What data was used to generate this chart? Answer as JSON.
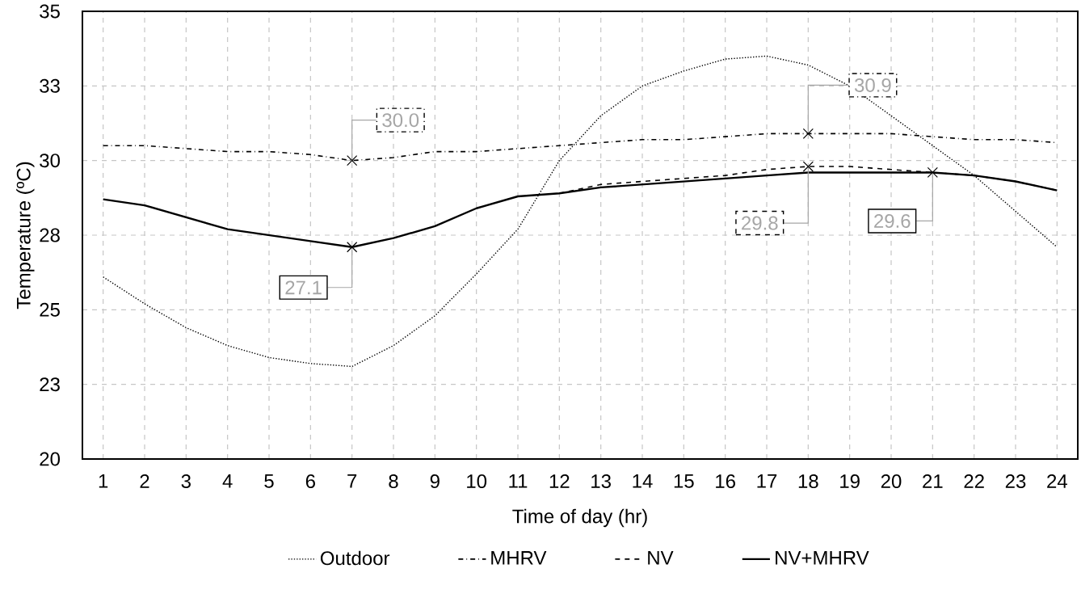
{
  "chart_data": {
    "type": "line",
    "xlabel": "Time of day (hr)",
    "ylabel": "Temperature (ºC)",
    "x": [
      1,
      2,
      3,
      4,
      5,
      6,
      7,
      8,
      9,
      10,
      11,
      12,
      13,
      14,
      15,
      16,
      17,
      18,
      19,
      20,
      21,
      22,
      23,
      24
    ],
    "xlim": [
      0.5,
      24.5
    ],
    "xticks": [
      1,
      2,
      3,
      4,
      5,
      6,
      7,
      8,
      9,
      10,
      11,
      12,
      13,
      14,
      15,
      16,
      17,
      18,
      19,
      20,
      21,
      22,
      23,
      24
    ],
    "ylim": [
      20,
      35
    ],
    "yticks": [
      20,
      {
        "value": 22.5,
        "label": "23"
      },
      25,
      {
        "value": 27.5,
        "label": "28"
      },
      30,
      {
        "value": 32.5,
        "label": "33"
      },
      35
    ],
    "grid": true,
    "legend": "bottom",
    "series": [
      {
        "name": "Outdoor",
        "color": "#000000",
        "line_style": "dotted",
        "values": [
          26.1,
          25.2,
          24.4,
          23.8,
          23.4,
          23.2,
          23.1,
          23.8,
          24.8,
          26.2,
          27.7,
          30.0,
          31.5,
          32.5,
          33.0,
          33.4,
          33.5,
          33.2,
          32.5,
          31.5,
          30.5,
          29.5,
          28.3,
          27.1
        ]
      },
      {
        "name": "MHRV",
        "color": "#000000",
        "line_style": "dashdot",
        "values": [
          30.5,
          30.5,
          30.4,
          30.3,
          30.3,
          30.2,
          30.0,
          30.1,
          30.3,
          30.3,
          30.4,
          30.5,
          30.6,
          30.7,
          30.7,
          30.8,
          30.9,
          30.9,
          30.9,
          30.9,
          30.8,
          30.7,
          30.7,
          30.6
        ]
      },
      {
        "name": "NV",
        "color": "#000000",
        "line_style": "dashed",
        "values": [
          null,
          null,
          null,
          null,
          null,
          null,
          null,
          null,
          null,
          null,
          null,
          28.9,
          29.2,
          29.3,
          29.4,
          29.5,
          29.7,
          29.8,
          29.8,
          29.7,
          29.6,
          29.5,
          29.3,
          29.0
        ]
      },
      {
        "name": "NV+MHRV",
        "color": "#000000",
        "line_style": "solid",
        "values": [
          28.7,
          28.5,
          28.1,
          27.7,
          27.5,
          27.3,
          27.1,
          27.4,
          27.8,
          28.4,
          28.8,
          28.9,
          29.1,
          29.2,
          29.3,
          29.4,
          29.5,
          29.6,
          29.6,
          29.6,
          29.6,
          29.5,
          29.3,
          29.0
        ]
      }
    ],
    "annotations": [
      {
        "text": "30.0",
        "x": 7,
        "y": 30.0
      },
      {
        "text": "27.1",
        "x": 7,
        "y": 27.1
      },
      {
        "text": "30.9",
        "x": 18,
        "y": 30.9
      },
      {
        "text": "29.8",
        "x": 18,
        "y": 29.8
      },
      {
        "text": "29.6",
        "x": 21,
        "y": 29.6
      }
    ]
  }
}
